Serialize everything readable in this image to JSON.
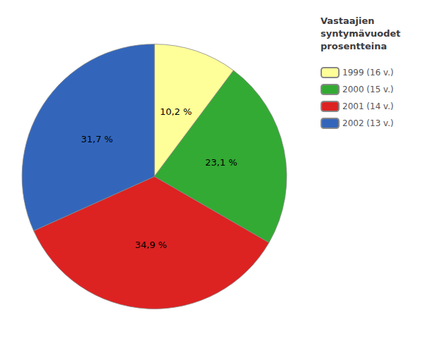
{
  "chart_data": {
    "type": "pie",
    "title": "Vastaajien\nsyntymävuodet\nprosentteina",
    "categories": [
      "1999 (16 v.)",
      "2000 (15 v.)",
      "2001 (14 v.)",
      "2002 (13 v.)"
    ],
    "values": [
      10.2,
      23.1,
      34.9,
      31.7
    ],
    "value_labels": [
      "10,2 %",
      "23,1 %",
      "34,9 %",
      "31,7 %"
    ],
    "colors": [
      "#ffff99",
      "#33aa33",
      "#dd2222",
      "#3366bb"
    ],
    "data_labels": true,
    "legend": "upper right"
  }
}
